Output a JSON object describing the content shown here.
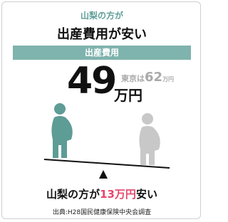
{
  "header": {
    "subtitle": "山梨の方が",
    "title": "出産費用が安い"
  },
  "banner": "出産費用",
  "yamanashi": {
    "value": 49,
    "unit": "万円"
  },
  "tokyo": {
    "label": "東京は",
    "value": 62,
    "unit": "万円"
  },
  "conclusion": {
    "prefix": "山梨の方が",
    "amount": "13万円",
    "suffix": "安い"
  },
  "source": "出典:H28国民健康保険中央会調査"
}
